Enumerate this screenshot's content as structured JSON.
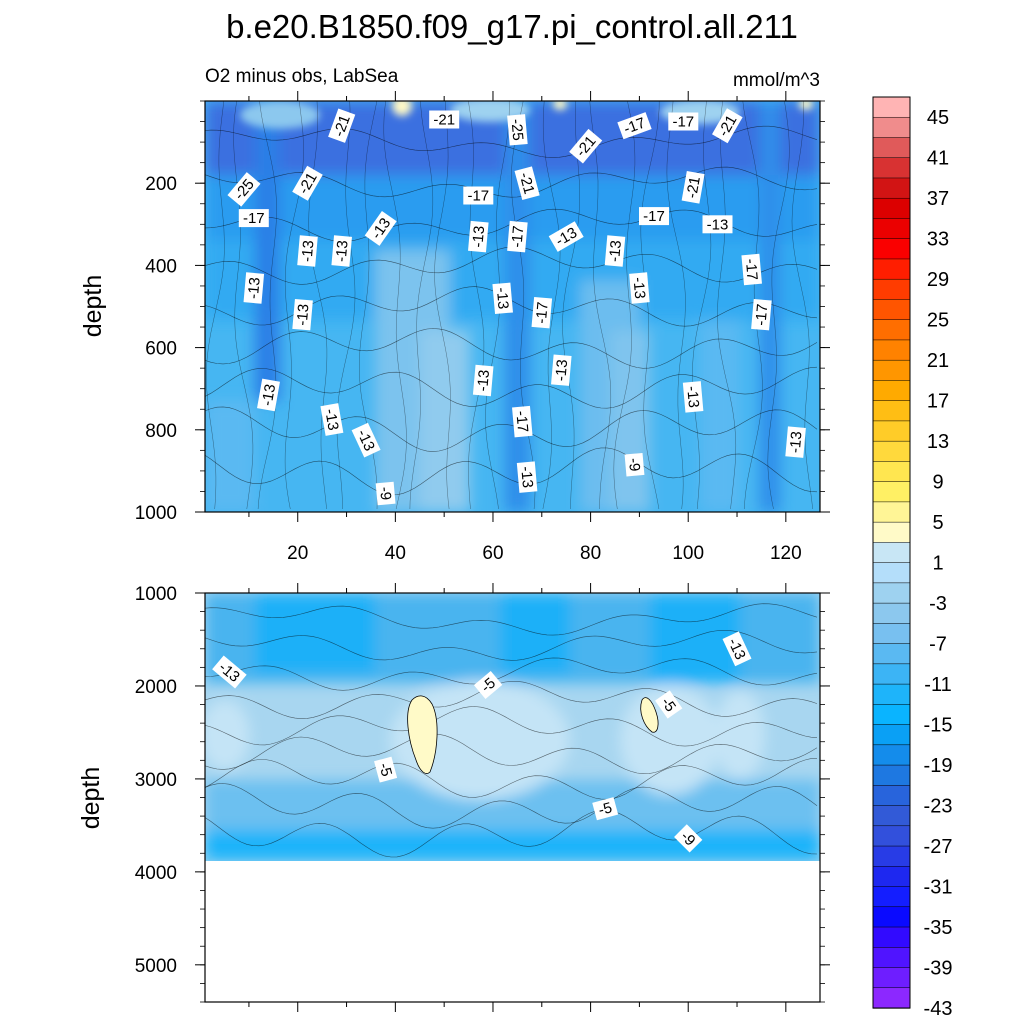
{
  "chart_data": {
    "type": "heatmap",
    "title": "b.e20.B1850.f09_g17.pi_control.all.211",
    "subtitle_left": "O2 minus obs, LabSea",
    "subtitle_right": "mmol/m^3",
    "panels": [
      {
        "name": "upper",
        "ylabel": "depth",
        "ylim": [
          1000,
          0
        ],
        "xlim": [
          1,
          127
        ],
        "xticks": [
          20,
          40,
          60,
          80,
          100,
          120
        ],
        "yticks": [
          200,
          400,
          600,
          800,
          1000
        ],
        "show_xtick_labels": true,
        "contour_labels": [
          {
            "text": "-21",
            "x": 50,
            "y": 45,
            "angle": 0
          },
          {
            "text": "-21",
            "x": 29,
            "y": 60,
            "angle": -70
          },
          {
            "text": "-25",
            "x": 65,
            "y": 70,
            "angle": 85
          },
          {
            "text": "-17",
            "x": 89,
            "y": 60,
            "angle": -20
          },
          {
            "text": "-17",
            "x": 99,
            "y": 50,
            "angle": 0
          },
          {
            "text": "-21",
            "x": 108,
            "y": 60,
            "angle": -60
          },
          {
            "text": "-21",
            "x": 79,
            "y": 110,
            "angle": -50
          },
          {
            "text": "-25",
            "x": 9,
            "y": 215,
            "angle": -50
          },
          {
            "text": "-21",
            "x": 22,
            "y": 200,
            "angle": -60
          },
          {
            "text": "-21",
            "x": 67,
            "y": 200,
            "angle": 75
          },
          {
            "text": "-17",
            "x": 57,
            "y": 230,
            "angle": 0
          },
          {
            "text": "-21",
            "x": 101,
            "y": 210,
            "angle": -80
          },
          {
            "text": "-17",
            "x": 11,
            "y": 285,
            "angle": 0
          },
          {
            "text": "-13",
            "x": 37,
            "y": 310,
            "angle": -55
          },
          {
            "text": "-17",
            "x": 93,
            "y": 280,
            "angle": 0
          },
          {
            "text": "-13",
            "x": 106,
            "y": 300,
            "angle": 0
          },
          {
            "text": "-13",
            "x": 57,
            "y": 330,
            "angle": -85
          },
          {
            "text": "-17",
            "x": 65,
            "y": 330,
            "angle": -85
          },
          {
            "text": "-13",
            "x": 75,
            "y": 330,
            "angle": -30
          },
          {
            "text": "-13",
            "x": 22,
            "y": 365,
            "angle": -85
          },
          {
            "text": "-13",
            "x": 29,
            "y": 365,
            "angle": -85
          },
          {
            "text": "-13",
            "x": 85,
            "y": 365,
            "angle": -85
          },
          {
            "text": "-17",
            "x": 113,
            "y": 410,
            "angle": 85
          },
          {
            "text": "-13",
            "x": 11,
            "y": 455,
            "angle": -85
          },
          {
            "text": "-13",
            "x": 90,
            "y": 455,
            "angle": 85
          },
          {
            "text": "-13",
            "x": 62,
            "y": 480,
            "angle": 85
          },
          {
            "text": "-13",
            "x": 21,
            "y": 520,
            "angle": -85
          },
          {
            "text": "-17",
            "x": 70,
            "y": 515,
            "angle": -85
          },
          {
            "text": "-17",
            "x": 115,
            "y": 520,
            "angle": -85
          },
          {
            "text": "-13",
            "x": 74,
            "y": 655,
            "angle": -85
          },
          {
            "text": "-13",
            "x": 58,
            "y": 680,
            "angle": -85
          },
          {
            "text": "-13",
            "x": 14,
            "y": 715,
            "angle": -80
          },
          {
            "text": "-13",
            "x": 101,
            "y": 720,
            "angle": 85
          },
          {
            "text": "-13",
            "x": 27,
            "y": 775,
            "angle": 80
          },
          {
            "text": "-17",
            "x": 66,
            "y": 780,
            "angle": 85
          },
          {
            "text": "-13",
            "x": 34,
            "y": 825,
            "angle": 65
          },
          {
            "text": "-13",
            "x": 122,
            "y": 830,
            "angle": -85
          },
          {
            "text": "-9",
            "x": 89,
            "y": 885,
            "angle": 85
          },
          {
            "text": "-13",
            "x": 67,
            "y": 915,
            "angle": 85
          },
          {
            "text": "-9",
            "x": 38,
            "y": 955,
            "angle": 85
          }
        ]
      },
      {
        "name": "lower",
        "ylabel": "depth",
        "ylim": [
          5400,
          1000
        ],
        "xlim": [
          1,
          127
        ],
        "xticks": [
          20,
          40,
          60,
          80,
          100,
          120
        ],
        "yticks": [
          1000,
          2000,
          3000,
          4000,
          5000
        ],
        "show_xtick_labels": false,
        "data_bottom": 3870,
        "contour_labels": [
          {
            "text": "-13",
            "x": 6,
            "y": 1850,
            "angle": 40
          },
          {
            "text": "-13",
            "x": 110,
            "y": 1600,
            "angle": 65
          },
          {
            "text": "-5",
            "x": 59,
            "y": 1990,
            "angle": -40
          },
          {
            "text": "-5",
            "x": 96,
            "y": 2200,
            "angle": 55
          },
          {
            "text": "-5",
            "x": 38,
            "y": 2900,
            "angle": 75
          },
          {
            "text": "-5",
            "x": 83,
            "y": 3320,
            "angle": -15
          },
          {
            "text": "-9",
            "x": 100,
            "y": 3640,
            "angle": 45
          }
        ]
      }
    ],
    "colorbar": {
      "levels": [
        -45,
        45
      ],
      "step": 2,
      "labels": [
        "45",
        "41",
        "37",
        "33",
        "29",
        "25",
        "21",
        "17",
        "13",
        "9",
        "5",
        "1",
        "-3",
        "-7",
        "-11",
        "-15",
        "-19",
        "-23",
        "-27",
        "-31",
        "-35",
        "-39",
        "-43"
      ],
      "colors_top_to_bottom": [
        "#ffb4b4",
        "#f08c8c",
        "#e05a5a",
        "#d83232",
        "#d21414",
        "#dc0000",
        "#eb0000",
        "#fa0000",
        "#ff1e00",
        "#ff3c00",
        "#ff5500",
        "#ff6e00",
        "#ff8200",
        "#ff9600",
        "#ffaa00",
        "#ffbe14",
        "#ffcc28",
        "#ffd93c",
        "#ffe650",
        "#fff064",
        "#fff596",
        "#fffac8",
        "#c8e6f5",
        "#b4defa",
        "#9ed2f0",
        "#8cc8ee",
        "#78c0f0",
        "#5ab9f2",
        "#3cb4f5",
        "#1eb4fa",
        "#0ab4ff",
        "#0aa0f5",
        "#148ceb",
        "#1e78e1",
        "#2864dc",
        "#325ad7",
        "#3250dc",
        "#283ce6",
        "#1e28f0",
        "#141eff",
        "#0a0aff",
        "#320aff",
        "#5014ff",
        "#6e1eff",
        "#8c28ff"
      ]
    }
  }
}
